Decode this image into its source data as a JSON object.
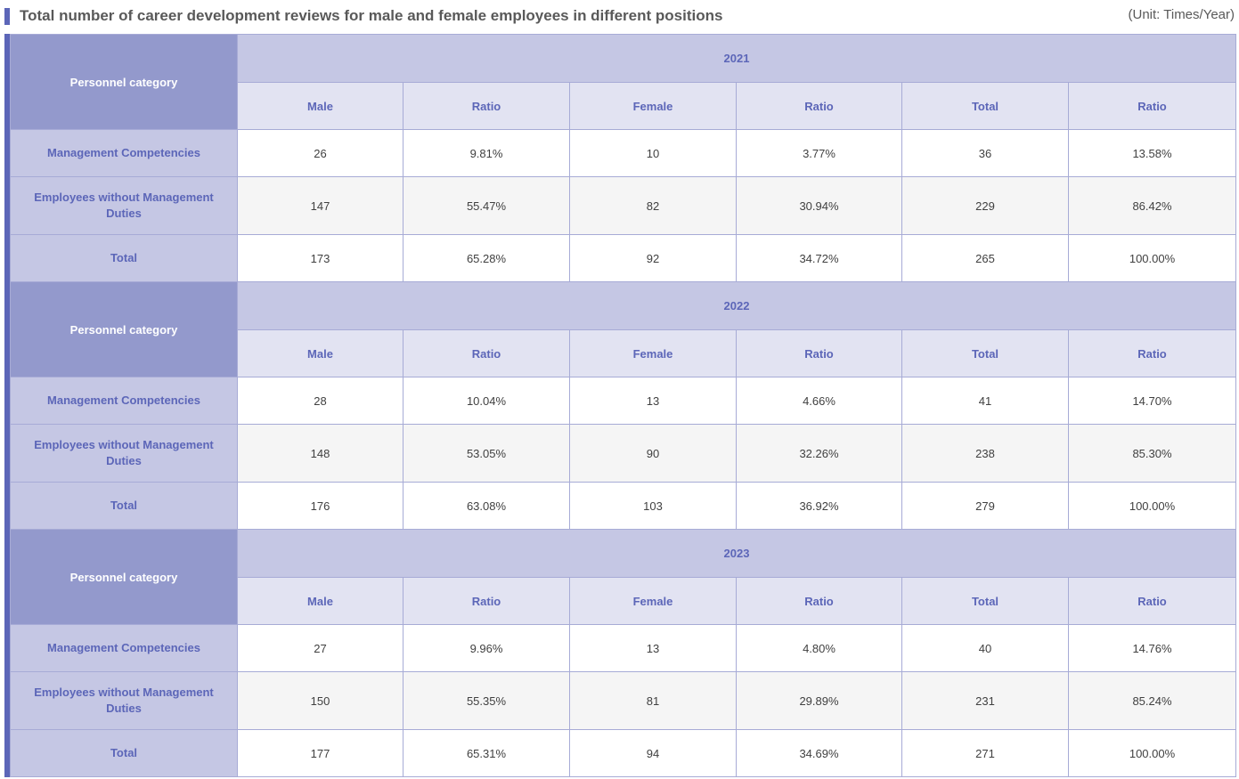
{
  "header": {
    "title": "Total number of career development reviews for male and female employees in different positions",
    "unit": "(Unit: Times/Year)"
  },
  "table": {
    "category_label": "Personnel category",
    "column_labels": [
      "Male",
      "Ratio",
      "Female",
      "Ratio",
      "Total",
      "Ratio"
    ],
    "sections": [
      {
        "year": "2021",
        "rows": [
          {
            "label": "Management Competencies",
            "values": [
              "26",
              "9.81%",
              "10",
              "3.77%",
              "36",
              "13.58%"
            ]
          },
          {
            "label": "Employees without Management Duties",
            "values": [
              "147",
              "55.47%",
              "82",
              "30.94%",
              "229",
              "86.42%"
            ]
          },
          {
            "label": "Total",
            "values": [
              "173",
              "65.28%",
              "92",
              "34.72%",
              "265",
              "100.00%"
            ]
          }
        ]
      },
      {
        "year": "2022",
        "rows": [
          {
            "label": "Management Competencies",
            "values": [
              "28",
              "10.04%",
              "13",
              "4.66%",
              "41",
              "14.70%"
            ]
          },
          {
            "label": "Employees without Management Duties",
            "values": [
              "148",
              "53.05%",
              "90",
              "32.26%",
              "238",
              "85.30%"
            ]
          },
          {
            "label": "Total",
            "values": [
              "176",
              "63.08%",
              "103",
              "36.92%",
              "279",
              "100.00%"
            ]
          }
        ]
      },
      {
        "year": "2023",
        "rows": [
          {
            "label": "Management Competencies",
            "values": [
              "27",
              "9.96%",
              "13",
              "4.80%",
              "40",
              "14.76%"
            ]
          },
          {
            "label": "Employees without Management Duties",
            "values": [
              "150",
              "55.35%",
              "81",
              "29.89%",
              "231",
              "85.24%"
            ]
          },
          {
            "label": "Total",
            "values": [
              "177",
              "65.31%",
              "94",
              "34.69%",
              "271",
              "100.00%"
            ]
          }
        ]
      }
    ]
  }
}
